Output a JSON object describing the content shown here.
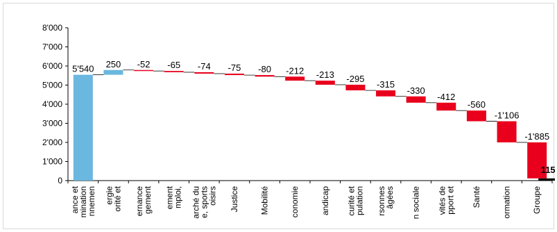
{
  "chart_data": {
    "type": "bar",
    "variant": "waterfall",
    "title": "",
    "xlabel": "",
    "ylabel": "",
    "ylim": [
      0,
      8000
    ],
    "yticks": [
      "0",
      "1'000",
      "2'000",
      "3'000",
      "4'000",
      "5'000",
      "6'000",
      "7'000",
      "8'000"
    ],
    "grid": false,
    "legend": "none",
    "categories": [
      [
        "ance et",
        "mination",
        "nnemen"
      ],
      [
        "ergie",
        "orité et"
      ],
      [
        "ernance",
        "gement"
      ],
      [
        "ement",
        "mploi,"
      ],
      [
        "arché du",
        "e, sports",
        "oisirs"
      ],
      [
        "Justice"
      ],
      [
        "Mobilité"
      ],
      [
        "conomie"
      ],
      [
        "andicap"
      ],
      [
        "curité et",
        "pulation"
      ],
      [
        "rsonnes",
        "âgées"
      ],
      [
        "n sociale"
      ],
      [
        "vités de",
        "pport et"
      ],
      [
        "Santé"
      ],
      [
        "ormation"
      ],
      [
        "Groupe"
      ]
    ],
    "values": [
      5540,
      250,
      -52,
      -65,
      -74,
      -75,
      -80,
      -212,
      -213,
      -295,
      -315,
      -330,
      -412,
      -560,
      -1106,
      -1885
    ],
    "data_labels": [
      "5'540",
      "250",
      "-52",
      "-65",
      "-74",
      "-75",
      "-80",
      "-212",
      "-213",
      "-295",
      "-315",
      "-330",
      "-412",
      "-560",
      "-1'106",
      "-1'885"
    ],
    "total": {
      "label": "Groupe",
      "value": 115,
      "data_label": "115"
    },
    "colors": {
      "start": "#6ab7df",
      "increase": "#6ab7df",
      "decrease": "#e8001c",
      "total": "#000000",
      "axis": "#000000",
      "text": "#000000"
    }
  }
}
